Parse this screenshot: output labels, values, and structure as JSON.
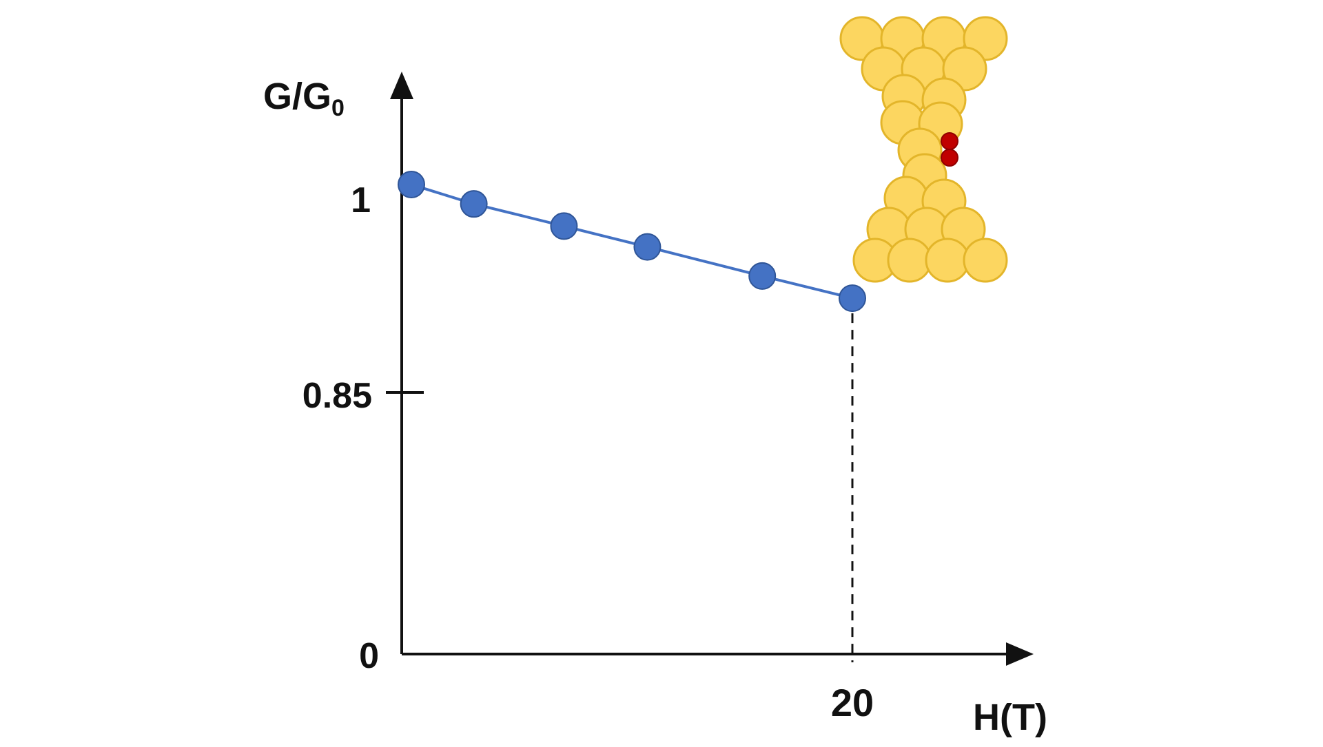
{
  "chart_data": {
    "type": "line",
    "ylabel": "G/G",
    "ylabel_subscript": "0",
    "xlabel": "H(T)",
    "y_ticks": [
      "0",
      "0.85",
      "1"
    ],
    "x_ticks": [
      "20"
    ],
    "series": [
      {
        "x": [
          0,
          3.2,
          7.2,
          10.9,
          16.0,
          20
        ],
        "y": [
          1.0,
          0.986,
          0.97,
          0.955,
          0.934,
          0.918
        ],
        "color": "#4472c4"
      }
    ],
    "y_axis_scale": "broken (0 to 0.85 compressed)",
    "grid": false,
    "legend": "none",
    "reference_line": {
      "x": 20,
      "style": "dashed vertical from last point to x-axis"
    },
    "inset": {
      "description": "molecule bridging a gold atomic-contact junction",
      "gold_color": "#fcd660",
      "gold_outline": "#e3b52a",
      "molecule_color": "#c00000"
    }
  }
}
